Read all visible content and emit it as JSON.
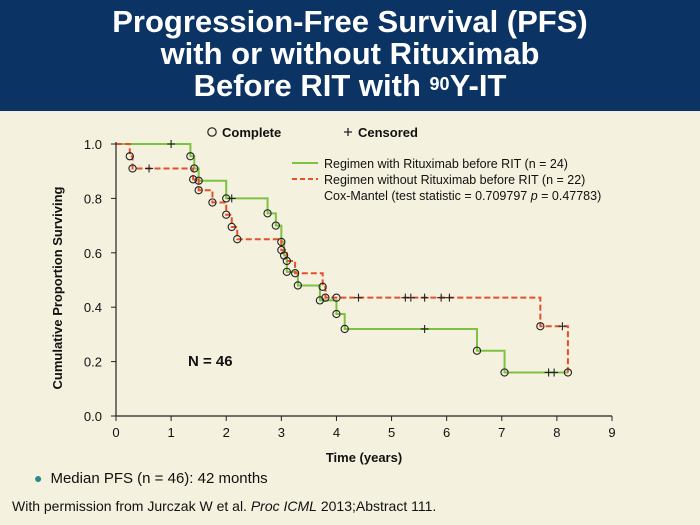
{
  "header": {
    "title_line1": "Progression-Free Survival (PFS)",
    "title_line2": "with or without Rituximab",
    "title_line3_pre": "Before RIT with ",
    "title_line3_sup": "90",
    "title_line3_post": "Y-IT"
  },
  "chart_data": {
    "type": "line",
    "xlabel": "Time (years)",
    "ylabel": "Cumulative Proportion Surviving",
    "xlim": [
      0,
      9
    ],
    "ylim": [
      0,
      1
    ],
    "x_ticks": [
      "0",
      "1",
      "2",
      "3",
      "4",
      "5",
      "6",
      "7",
      "8",
      "9"
    ],
    "y_ticks": [
      "0.0",
      "0.2",
      "0.4",
      "0.6",
      "0.8",
      "1.0"
    ],
    "marker_legend": {
      "complete": "Complete",
      "censored": "Censored"
    },
    "annotation": "N = 46",
    "stat_text": {
      "pre": "Cox-Mantel (test statistic = 0.709797 ",
      "p": "p",
      "post": " = 0.47783)"
    },
    "series": [
      {
        "name": "Regimen with Rituximab before RIT (n = 24)",
        "color": "#7dc242",
        "style": "solid",
        "steps": [
          [
            0,
            1.0
          ],
          [
            1.35,
            0.955
          ],
          [
            1.42,
            0.91
          ],
          [
            1.5,
            0.865
          ],
          [
            2.0,
            0.8
          ],
          [
            2.75,
            0.745
          ],
          [
            2.9,
            0.7
          ],
          [
            3.0,
            0.64
          ],
          [
            3.05,
            0.59
          ],
          [
            3.1,
            0.53
          ],
          [
            3.3,
            0.48
          ],
          [
            3.7,
            0.425
          ],
          [
            4.0,
            0.375
          ],
          [
            4.15,
            0.32
          ],
          [
            6.55,
            0.24
          ],
          [
            7.05,
            0.16
          ],
          [
            8.2,
            0.16
          ]
        ],
        "complete": [
          [
            1.35,
            0.955
          ],
          [
            1.42,
            0.91
          ],
          [
            1.5,
            0.865
          ],
          [
            2.0,
            0.8
          ],
          [
            2.75,
            0.745
          ],
          [
            2.9,
            0.7
          ],
          [
            3.0,
            0.64
          ],
          [
            3.05,
            0.59
          ],
          [
            3.1,
            0.53
          ],
          [
            3.3,
            0.48
          ],
          [
            3.7,
            0.425
          ],
          [
            4.0,
            0.375
          ],
          [
            4.15,
            0.32
          ],
          [
            6.55,
            0.24
          ],
          [
            7.05,
            0.16
          ]
        ],
        "censored": [
          [
            1.0,
            1.0
          ],
          [
            2.1,
            0.8
          ],
          [
            5.6,
            0.32
          ],
          [
            7.85,
            0.16
          ],
          [
            7.95,
            0.16
          ]
        ]
      },
      {
        "name": "Regimen without Rituximab before RIT (n = 22)",
        "color": "#e4502a",
        "style": "dashed",
        "steps": [
          [
            0,
            1.0
          ],
          [
            0.25,
            0.955
          ],
          [
            0.3,
            0.91
          ],
          [
            1.4,
            0.87
          ],
          [
            1.5,
            0.83
          ],
          [
            1.75,
            0.785
          ],
          [
            2.0,
            0.74
          ],
          [
            2.1,
            0.695
          ],
          [
            2.2,
            0.65
          ],
          [
            3.0,
            0.61
          ],
          [
            3.1,
            0.57
          ],
          [
            3.25,
            0.525
          ],
          [
            3.75,
            0.475
          ],
          [
            3.8,
            0.435
          ],
          [
            4.0,
            0.435
          ],
          [
            7.7,
            0.33
          ],
          [
            8.2,
            0.16
          ]
        ],
        "complete": [
          [
            0.25,
            0.955
          ],
          [
            0.3,
            0.91
          ],
          [
            1.4,
            0.87
          ],
          [
            1.5,
            0.83
          ],
          [
            1.75,
            0.785
          ],
          [
            2.0,
            0.74
          ],
          [
            2.1,
            0.695
          ],
          [
            2.2,
            0.65
          ],
          [
            3.0,
            0.61
          ],
          [
            3.1,
            0.57
          ],
          [
            3.25,
            0.525
          ],
          [
            3.75,
            0.475
          ],
          [
            3.8,
            0.435
          ],
          [
            4.0,
            0.435
          ],
          [
            7.7,
            0.33
          ],
          [
            8.2,
            0.16
          ]
        ],
        "censored": [
          [
            0.6,
            0.91
          ],
          [
            4.4,
            0.435
          ],
          [
            5.25,
            0.435
          ],
          [
            5.35,
            0.435
          ],
          [
            5.6,
            0.435
          ],
          [
            5.9,
            0.435
          ],
          [
            6.05,
            0.435
          ],
          [
            8.1,
            0.33
          ]
        ]
      }
    ]
  },
  "bullet": {
    "text": "Median PFS (n = 46): 42 months"
  },
  "footer": {
    "pre": "With permission from Jurczak W et al. ",
    "journal": "Proc ICML",
    "post": " 2013;Abstract 111."
  }
}
